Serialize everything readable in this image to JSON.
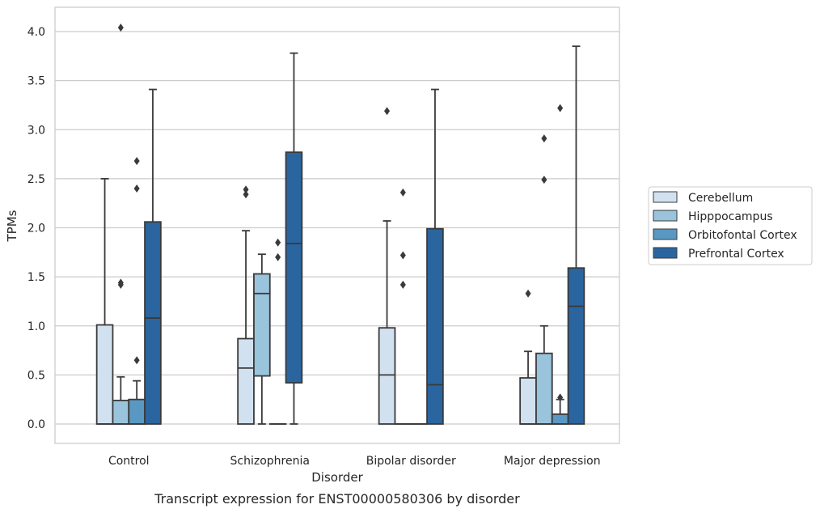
{
  "chart_data": {
    "type": "boxplot",
    "caption": "Transcript expression for ENST00000580306 by disorder",
    "xlabel": "Disorder",
    "ylabel": "TPMs",
    "ylim": [
      -0.2,
      4.25
    ],
    "yticks": [
      "0.0",
      "0.5",
      "1.0",
      "1.5",
      "2.0",
      "2.5",
      "3.0",
      "3.5",
      "4.0"
    ],
    "grid": "horizontal",
    "legend_position": "right",
    "categories": [
      "Control",
      "Schizophrenia",
      "Bipolar disorder",
      "Major depression"
    ],
    "series": [
      {
        "name": "Cerebellum",
        "color": "#d2e1f0",
        "boxes": [
          {
            "min": 0,
            "q1": 0,
            "median": 0,
            "q3": 1.01,
            "max": 2.5,
            "outliers": []
          },
          {
            "min": 0,
            "q1": 0,
            "median": 0.57,
            "q3": 0.87,
            "max": 1.97,
            "outliers": [
              2.34,
              2.39
            ]
          },
          {
            "min": 0,
            "q1": 0,
            "median": 0.5,
            "q3": 0.98,
            "max": 2.07,
            "outliers": [
              3.19
            ]
          },
          {
            "min": 0,
            "q1": 0,
            "median": 0,
            "q3": 0.47,
            "max": 0.74,
            "outliers": [
              1.33
            ]
          }
        ]
      },
      {
        "name": "Hipppocampus",
        "color": "#9ac3dc",
        "boxes": [
          {
            "min": 0,
            "q1": 0,
            "median": 0,
            "q3": 0.24,
            "max": 0.48,
            "outliers": [
              1.42,
              1.44,
              4.04
            ]
          },
          {
            "min": 0,
            "q1": 0.49,
            "median": 1.33,
            "q3": 1.53,
            "max": 1.73,
            "outliers": []
          },
          {
            "min": 0,
            "q1": 0,
            "median": 0,
            "q3": 0,
            "max": 0,
            "outliers": [
              1.42,
              1.72,
              2.36
            ]
          },
          {
            "min": 0,
            "q1": 0,
            "median": 0,
            "q3": 0.72,
            "max": 1.0,
            "outliers": [
              2.49,
              2.91
            ]
          }
        ]
      },
      {
        "name": "Orbitofontal Cortex",
        "color": "#5a98c4",
        "boxes": [
          {
            "min": 0,
            "q1": 0,
            "median": 0,
            "q3": 0.25,
            "max": 0.44,
            "outliers": [
              0.65,
              2.4,
              2.68
            ]
          },
          {
            "min": 0,
            "q1": 0,
            "median": 0,
            "q3": 0,
            "max": 0,
            "outliers": [
              1.7,
              1.85
            ]
          },
          {
            "min": 0,
            "q1": 0,
            "median": 0,
            "q3": 0,
            "max": 0,
            "outliers": []
          },
          {
            "min": 0,
            "q1": 0,
            "median": 0,
            "q3": 0.1,
            "max": 0.25,
            "outliers": [
              0.27,
              3.22
            ]
          }
        ]
      },
      {
        "name": "Prefrontal Cortex",
        "color": "#2a65a0",
        "boxes": [
          {
            "min": 0,
            "q1": 0,
            "median": 1.08,
            "q3": 2.06,
            "max": 3.41,
            "outliers": []
          },
          {
            "min": 0,
            "q1": 0.42,
            "median": 1.84,
            "q3": 2.77,
            "max": 3.78,
            "outliers": []
          },
          {
            "min": 0,
            "q1": 0,
            "median": 0.4,
            "q3": 1.99,
            "max": 3.41,
            "outliers": []
          },
          {
            "min": 0,
            "q1": 0,
            "median": 1.2,
            "q3": 1.59,
            "max": 3.85,
            "outliers": []
          }
        ]
      }
    ]
  }
}
